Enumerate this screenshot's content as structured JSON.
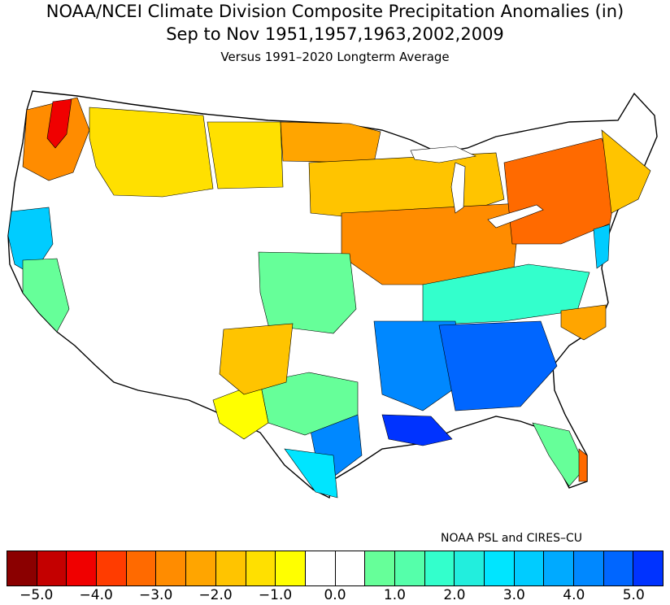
{
  "header": {
    "title": "NOAA/NCEI Climate Division Composite Precipitation Anomalies (in)",
    "subtitle": "Sep to Nov  1951,1957,1963,2002,2009",
    "baseline": "Versus 1991–2020 Longterm Average"
  },
  "credit": "NOAA PSL and CIRES–CU",
  "colorbar": {
    "colors": [
      "#8b0000",
      "#c40000",
      "#f00000",
      "#ff3c00",
      "#ff6a00",
      "#ff8c00",
      "#ffa500",
      "#ffc400",
      "#ffe000",
      "#ffff00",
      "#ffffff",
      "#ffffff",
      "#66ff99",
      "#55ffaa",
      "#33ffcc",
      "#22eedd",
      "#00e5ff",
      "#00ccff",
      "#00aaff",
      "#0088ff",
      "#0066ff",
      "#0033ff"
    ],
    "tick_labels": [
      "-5.0",
      "-4.0",
      "-3.0",
      "-2.0",
      "-1.0",
      "0.0",
      "1.0",
      "2.0",
      "3.0",
      "4.0",
      "5.0"
    ]
  },
  "regions": [
    {
      "name": "pacific-northwest-coast",
      "color": "#ff8c00"
    },
    {
      "name": "western-washington-peak",
      "color": "#f00000"
    },
    {
      "name": "northern-rockies",
      "color": "#ffe000"
    },
    {
      "name": "northern-plains",
      "color": "#ffe000"
    },
    {
      "name": "minnesota-north",
      "color": "#ffa500"
    },
    {
      "name": "upper-midwest",
      "color": "#ffc400"
    },
    {
      "name": "ohio-valley-north",
      "color": "#ff8c00"
    },
    {
      "name": "northeast-pennsylvania",
      "color": "#ff6a00"
    },
    {
      "name": "new-england",
      "color": "#ffc400"
    },
    {
      "name": "california-coast",
      "color": "#00ccff"
    },
    {
      "name": "central-valley",
      "color": "#66ff99"
    },
    {
      "name": "kansas-oklahoma",
      "color": "#66ff99"
    },
    {
      "name": "kentucky-tennessee",
      "color": "#33ffcc"
    },
    {
      "name": "southeast-deep",
      "color": "#0066ff"
    },
    {
      "name": "arkansas-mississippi",
      "color": "#0088ff"
    },
    {
      "name": "louisiana-coast",
      "color": "#0033ff"
    },
    {
      "name": "east-texas",
      "color": "#0088ff"
    },
    {
      "name": "central-texas",
      "color": "#66ff99"
    },
    {
      "name": "south-texas",
      "color": "#00e5ff"
    },
    {
      "name": "west-texas",
      "color": "#ffff00"
    },
    {
      "name": "new-mexico",
      "color": "#ffc400"
    },
    {
      "name": "florida-peninsula",
      "color": "#66ff99"
    },
    {
      "name": "south-florida",
      "color": "#ff6a00"
    },
    {
      "name": "carolinas-coast",
      "color": "#ffa500"
    },
    {
      "name": "mid-atlantic-coast",
      "color": "#00ccff"
    }
  ]
}
